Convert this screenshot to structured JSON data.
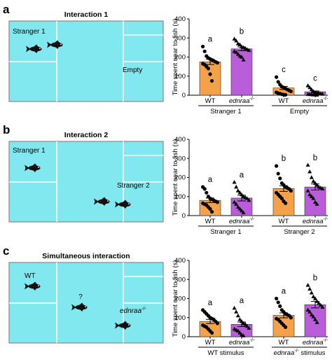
{
  "colors": {
    "arena_fill": "#80e8ee",
    "arena_border": "#888888",
    "arena_divider": "#ffffff",
    "wt_bar": "#f5a14a",
    "mutant_bar": "#b95ddb",
    "fish": "#111111"
  },
  "panels": [
    {
      "letter": "a",
      "arena": {
        "title": "Interaction 1",
        "labels": [
          {
            "text": "Stranger 1",
            "italic": false,
            "sup": ""
          },
          {
            "text": "Empty",
            "italic": false,
            "sup": ""
          }
        ]
      }
    },
    {
      "letter": "b",
      "arena": {
        "title": "Interaction 2",
        "labels": [
          {
            "text": "Stranger 1",
            "italic": false,
            "sup": ""
          },
          {
            "text": "Stranger 2",
            "italic": false,
            "sup": ""
          }
        ]
      }
    },
    {
      "letter": "c",
      "arena": {
        "title": "Simultaneous interaction",
        "labels": [
          {
            "text": "WT",
            "italic": false,
            "sup": ""
          },
          {
            "text": "?",
            "italic": false,
            "sup": ""
          },
          {
            "text": "ednraa",
            "italic": true,
            "sup": "-/-"
          }
        ]
      }
    }
  ],
  "chart_data": [
    {
      "type": "bar",
      "ylabel": "Time spent near to fish (s)",
      "ylim": [
        0,
        400
      ],
      "yticks": [
        0,
        100,
        200,
        300,
        400
      ],
      "categories": [
        {
          "name": "WT",
          "italic": false,
          "sup": ""
        },
        {
          "name": "ednraa",
          "italic": true,
          "sup": "-/-"
        },
        {
          "name": "WT",
          "italic": false,
          "sup": ""
        },
        {
          "name": "ednraa",
          "italic": true,
          "sup": "-/-"
        }
      ],
      "groups": [
        {
          "label": "Stranger 1",
          "italic": false,
          "sup": "",
          "suffix": ""
        },
        {
          "label": "Empty",
          "italic": false,
          "sup": "",
          "suffix": ""
        }
      ],
      "means": [
        175,
        243,
        38,
        18
      ],
      "sem": [
        14,
        10,
        8,
        4
      ],
      "letters": [
        "a",
        "b",
        "c",
        "c"
      ],
      "points": [
        [
          255,
          230,
          205,
          195,
          190,
          185,
          180,
          175,
          170,
          165,
          160,
          150,
          140,
          110,
          75
        ],
        [
          295,
          285,
          270,
          265,
          255,
          250,
          245,
          240,
          235,
          230,
          225,
          215,
          205,
          200,
          185
        ],
        [
          95,
          70,
          55,
          45,
          40,
          35,
          30,
          25,
          20,
          15,
          10,
          8,
          5,
          3,
          2
        ],
        [
          50,
          40,
          30,
          20,
          15,
          12,
          10,
          8,
          6,
          5,
          4,
          3,
          2,
          2,
          1
        ]
      ]
    },
    {
      "type": "bar",
      "ylabel": "Time spent near to fish (s)",
      "ylim": [
        0,
        400
      ],
      "yticks": [
        0,
        100,
        200,
        300,
        400
      ],
      "categories": [
        {
          "name": "WT",
          "italic": false,
          "sup": ""
        },
        {
          "name": "ednraa",
          "italic": true,
          "sup": "-/-"
        },
        {
          "name": "WT",
          "italic": false,
          "sup": ""
        },
        {
          "name": "ednraa",
          "italic": true,
          "sup": "-/-"
        }
      ],
      "groups": [
        {
          "label": "Stranger 1",
          "italic": false,
          "sup": "",
          "suffix": ""
        },
        {
          "label": "Stranger 2",
          "italic": false,
          "sup": "",
          "suffix": ""
        }
      ],
      "means": [
        80,
        92,
        142,
        150
      ],
      "sem": [
        12,
        15,
        15,
        16
      ],
      "letters": [
        "a",
        "a",
        "b",
        "b"
      ],
      "points": [
        [
          150,
          140,
          120,
          100,
          90,
          85,
          80,
          75,
          70,
          65,
          60,
          55,
          45,
          35,
          20
        ],
        [
          175,
          150,
          130,
          120,
          110,
          100,
          95,
          90,
          80,
          70,
          60,
          45,
          35,
          25,
          15
        ],
        [
          260,
          220,
          195,
          170,
          160,
          150,
          145,
          140,
          130,
          120,
          110,
          100,
          90,
          75,
          65
        ],
        [
          265,
          230,
          200,
          180,
          170,
          160,
          150,
          145,
          140,
          130,
          110,
          100,
          90,
          70,
          60
        ]
      ]
    },
    {
      "type": "bar",
      "ylabel": "Time spent near to fish (s)",
      "ylim": [
        0,
        400
      ],
      "yticks": [
        0,
        100,
        200,
        300,
        400
      ],
      "categories": [
        {
          "name": "WT",
          "italic": false,
          "sup": ""
        },
        {
          "name": "ednraa",
          "italic": true,
          "sup": "-/-"
        },
        {
          "name": "WT",
          "italic": false,
          "sup": ""
        },
        {
          "name": "ednraa",
          "italic": true,
          "sup": "-/-"
        }
      ],
      "groups": [
        {
          "label": "WT stimulus",
          "italic": false,
          "sup": "",
          "suffix": ""
        },
        {
          "label": "ednraa",
          "italic": true,
          "sup": "-/-",
          "suffix": " stimulus"
        }
      ],
      "means": [
        80,
        65,
        112,
        168
      ],
      "sem": [
        11,
        12,
        13,
        17
      ],
      "letters": [
        "a",
        "a",
        "a",
        "b"
      ],
      "points": [
        [
          140,
          130,
          120,
          110,
          100,
          95,
          90,
          80,
          70,
          60,
          55,
          50,
          40,
          30,
          20
        ],
        [
          150,
          130,
          110,
          90,
          80,
          70,
          65,
          55,
          45,
          40,
          35,
          30,
          20,
          10,
          5
        ],
        [
          200,
          180,
          160,
          140,
          130,
          120,
          115,
          110,
          100,
          95,
          90,
          80,
          70,
          60,
          50
        ],
        [
          270,
          250,
          230,
          210,
          200,
          185,
          175,
          165,
          155,
          140,
          130,
          115,
          105,
          90,
          75
        ]
      ]
    }
  ]
}
